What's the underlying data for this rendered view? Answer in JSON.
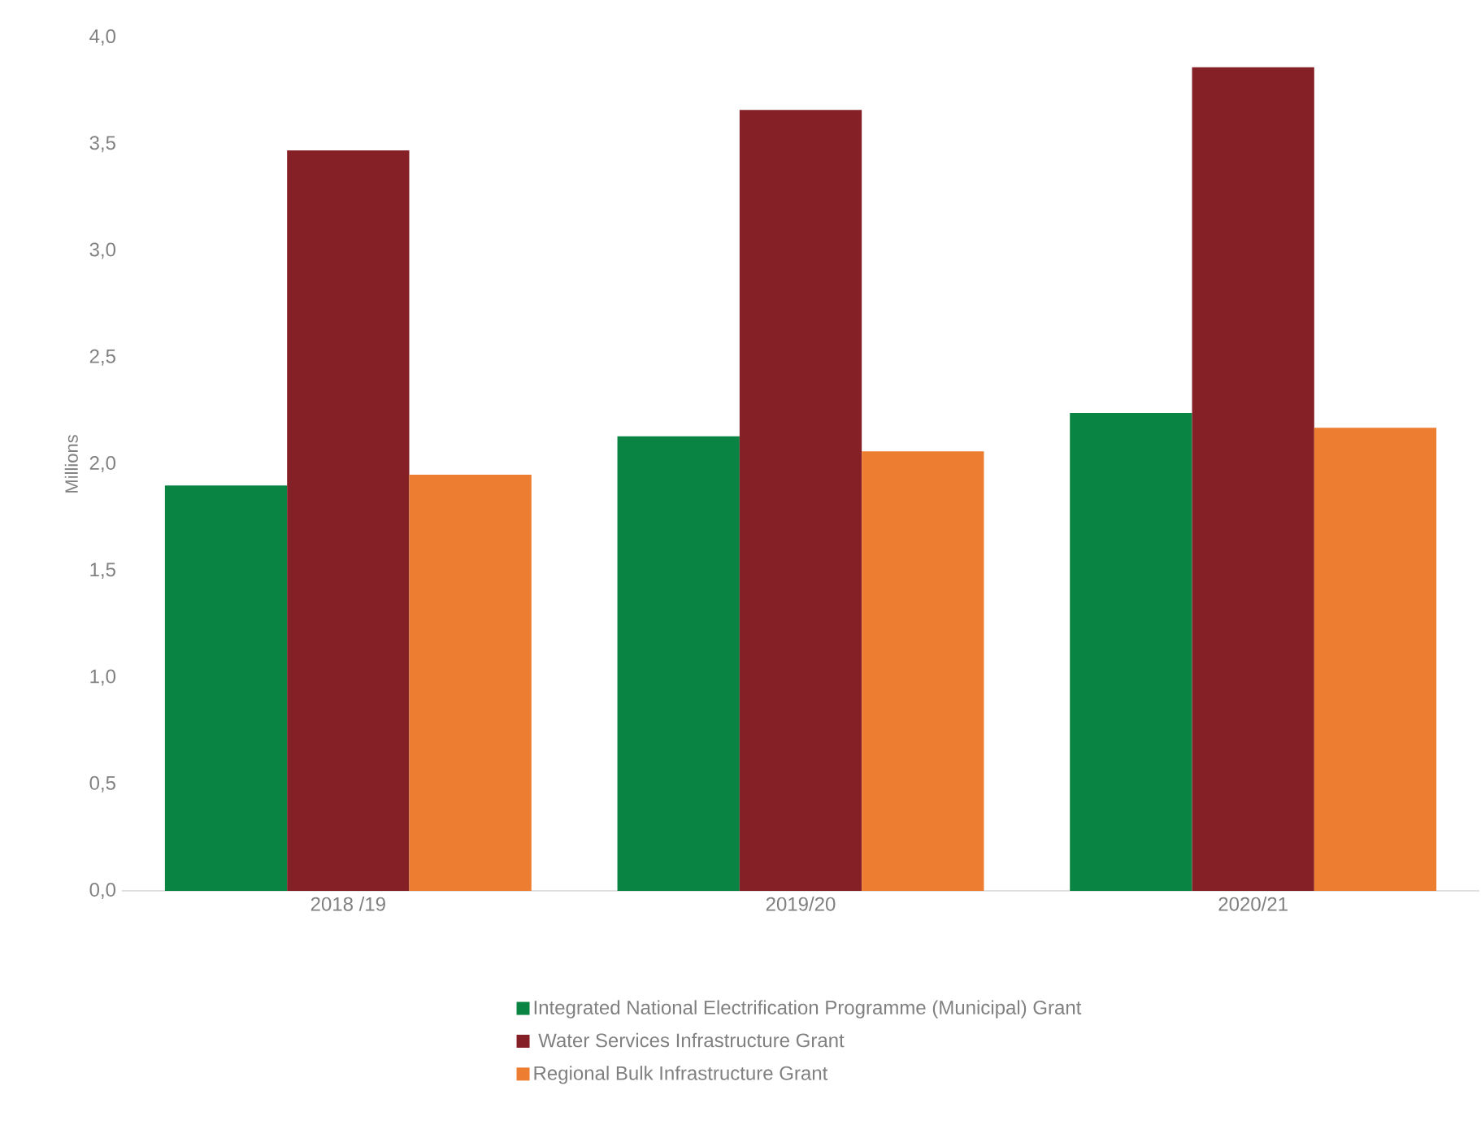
{
  "chart_data": {
    "type": "bar",
    "ylabel": "Millions",
    "categories": [
      "2018 /19",
      "2019/20",
      "2020/21"
    ],
    "series": [
      {
        "name": "Integrated National Electrification Programme (Municipal) Grant",
        "color": "#0a8442",
        "values": [
          1.9,
          2.13,
          2.24
        ]
      },
      {
        "name": " Water Services Infrastructure Grant",
        "color": "#852026",
        "values": [
          3.47,
          3.66,
          3.86
        ]
      },
      {
        "name": "Regional Bulk Infrastructure Grant",
        "color": "#ed7d31",
        "values": [
          1.95,
          2.06,
          2.17
        ]
      }
    ],
    "ylim": [
      0,
      4
    ],
    "yticks": [
      {
        "value": 0,
        "label": "0,0"
      },
      {
        "value": 0.5,
        "label": "0,5"
      },
      {
        "value": 1,
        "label": "1,0"
      },
      {
        "value": 1.5,
        "label": "1,5"
      },
      {
        "value": 2,
        "label": "2,0"
      },
      {
        "value": 2.5,
        "label": "2,5"
      },
      {
        "value": 3,
        "label": "3,0"
      },
      {
        "value": 3.5,
        "label": "3,5"
      },
      {
        "value": 4,
        "label": "4,0"
      }
    ],
    "grid": false,
    "legend": "bottom"
  }
}
